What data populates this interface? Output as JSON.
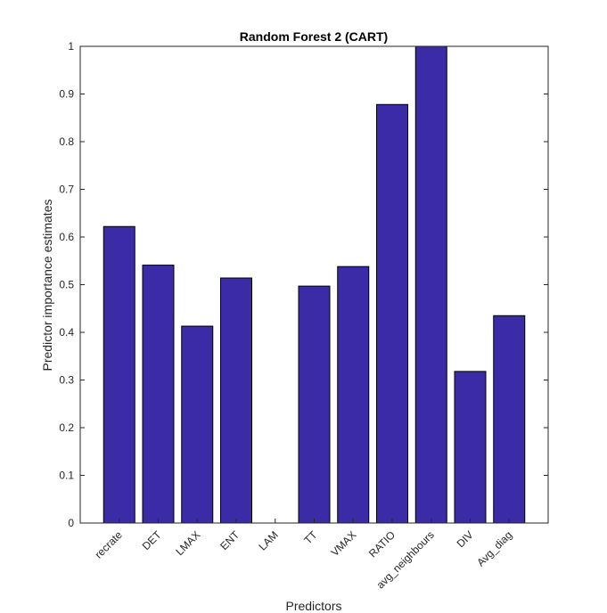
{
  "chart_data": {
    "type": "bar",
    "title": "Random Forest 2 (CART)",
    "xlabel": "Predictors",
    "ylabel": "Predictor importance estimates",
    "categories": [
      "recrate",
      "DET",
      "LMAX",
      "ENT",
      "LAM",
      "TT",
      "VMAX",
      "RATIO",
      "avg_neighbours",
      "DIV",
      "Avg_diag"
    ],
    "values": [
      0.622,
      0.541,
      0.413,
      0.514,
      0.0,
      0.497,
      0.538,
      0.878,
      1.0,
      0.318,
      0.435
    ],
    "ylim": [
      0,
      1
    ],
    "yticks": [
      "0",
      "0.1",
      "0.2",
      "0.3",
      "0.4",
      "0.5",
      "0.6",
      "0.7",
      "0.8",
      "0.9",
      "1"
    ],
    "grid": false,
    "bar_color": "#3b2ba6",
    "bar_edge_color": "#000000"
  }
}
